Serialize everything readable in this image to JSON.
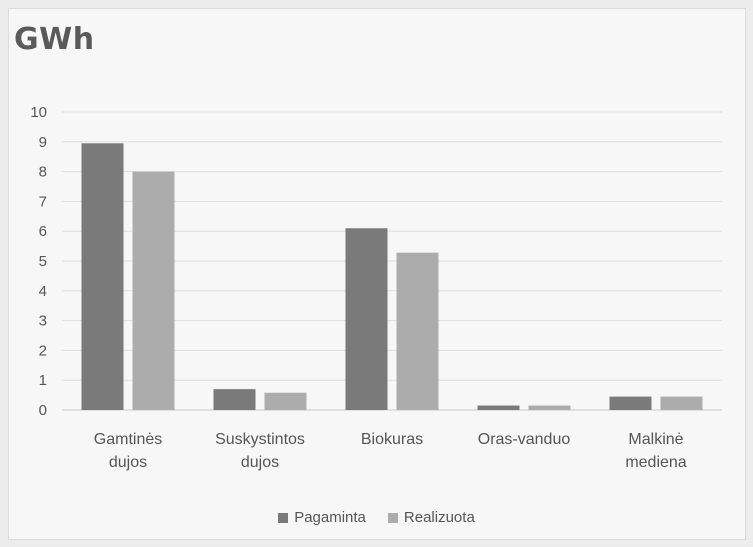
{
  "chart_data": {
    "type": "bar",
    "title": "GWh",
    "categories": [
      [
        "Gamtinės",
        "dujos"
      ],
      [
        "Suskystintos",
        "dujos"
      ],
      [
        "Biokuras"
      ],
      [
        "Oras-vanduo"
      ],
      [
        "Malkinė",
        "mediena"
      ]
    ],
    "series": [
      {
        "name": "Pagaminta",
        "color": "#7a7a7a",
        "values": [
          8.95,
          0.7,
          6.1,
          0.15,
          0.45
        ]
      },
      {
        "name": "Realizuota",
        "color": "#acacac",
        "values": [
          8.0,
          0.58,
          5.28,
          0.15,
          0.45
        ]
      }
    ],
    "ylim": [
      0,
      10
    ],
    "yticks": [
      "0",
      "1",
      "2",
      "3",
      "4",
      "5",
      "6",
      "7",
      "8",
      "9",
      "10"
    ],
    "grid": true,
    "legend_position": "bottom"
  }
}
